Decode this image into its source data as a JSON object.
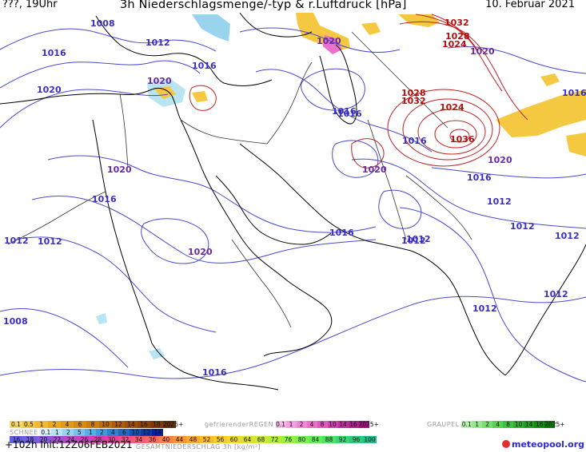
{
  "header": {
    "left": "???, 19Uhr",
    "title": "3h Niederschlagsmenge/-typ & r.Luftdruck [hPa]",
    "date": "10. Februar 2021"
  },
  "footer": {
    "run_info": "+102h  Init:12Z06FEB2021",
    "logo": "meteopool.org"
  },
  "colors": {
    "isobar_low": "#4a4ad0",
    "isobar_high": "#c02020",
    "label_low": "#3a2fc0",
    "label_high": "#b01010",
    "coast": "#000000",
    "border": "#333333"
  },
  "isobar_labels": [
    {
      "text": "1008",
      "tone": "low"
    },
    {
      "text": "1012",
      "tone": "low"
    },
    {
      "text": "1016",
      "tone": "low"
    },
    {
      "text": "1016",
      "tone": "low"
    },
    {
      "text": "1020",
      "tone": "low"
    },
    {
      "text": "1020",
      "tone": "low"
    },
    {
      "text": "1012",
      "tone": "low"
    },
    {
      "text": "1016",
      "tone": "low"
    },
    {
      "text": "1020",
      "tone": "low"
    },
    {
      "text": "1016",
      "tone": "low"
    },
    {
      "text": "1020",
      "tone": "low"
    },
    {
      "text": "1012",
      "tone": "low"
    },
    {
      "text": "1008",
      "tone": "low"
    },
    {
      "text": "1016",
      "tone": "low"
    },
    {
      "text": "1020",
      "tone": "low"
    },
    {
      "text": "1016",
      "tone": "low"
    },
    {
      "text": "1020",
      "tone": "low"
    },
    {
      "text": "1016",
      "tone": "low"
    },
    {
      "text": "1016",
      "tone": "low"
    },
    {
      "text": "1032",
      "tone": "high"
    },
    {
      "text": "1028",
      "tone": "high"
    },
    {
      "text": "1024",
      "tone": "high"
    },
    {
      "text": "1020",
      "tone": "low"
    },
    {
      "text": "1028",
      "tone": "high"
    },
    {
      "text": "1032",
      "tone": "high"
    },
    {
      "text": "1024",
      "tone": "high"
    },
    {
      "text": "1036",
      "tone": "high"
    },
    {
      "text": "1020",
      "tone": "low"
    },
    {
      "text": "1016",
      "tone": "low"
    },
    {
      "text": "1012",
      "tone": "low"
    },
    {
      "text": "1012",
      "tone": "low"
    },
    {
      "text": "1012",
      "tone": "low"
    },
    {
      "text": "1012",
      "tone": "low"
    },
    {
      "text": "1012",
      "tone": "low"
    },
    {
      "text": "1012",
      "tone": "low"
    },
    {
      "text": "1012",
      "tone": "low"
    },
    {
      "text": "1016",
      "tone": "low"
    }
  ],
  "legend": {
    "rain": {
      "name": "REGEN",
      "values": [
        "0.1",
        "0.5",
        "1",
        "2",
        "4",
        "6",
        "8",
        "10",
        "12",
        "14",
        "16",
        "18",
        "2025+"
      ],
      "colors": [
        "#f8d866",
        "#f5c842",
        "#f2b830",
        "#eaa820",
        "#e09a18",
        "#d88c14",
        "#cc7c10",
        "#c06c0c",
        "#b05c0a",
        "#a04e08",
        "#904206",
        "#803806",
        "#6a2e06"
      ]
    },
    "freezing_rain": {
      "name": "gefrierenderREGEN",
      "values": [
        "0.1",
        "1",
        "2",
        "4",
        "8",
        "10",
        "14",
        "16",
        "2025+"
      ],
      "colors": [
        "#f8b8e8",
        "#f4a0e0",
        "#f088d6",
        "#ea70cc",
        "#e058c0",
        "#d040b0",
        "#c030a0",
        "#b02090",
        "#a01080"
      ]
    },
    "graupel": {
      "name": "GRAUPEL",
      "values": [
        "0.1",
        "1",
        "2",
        "4",
        "8",
        "10",
        "14",
        "16",
        "2025+"
      ],
      "colors": [
        "#b8f0b0",
        "#98e890",
        "#78de70",
        "#58d050",
        "#40c040",
        "#30b030",
        "#20a020",
        "#109010",
        "#008000"
      ]
    },
    "snow": {
      "name": "SCHNEE",
      "values": [
        "0.1",
        "1",
        "2",
        "5",
        "1",
        "2",
        "4",
        "6",
        "10",
        "12",
        "14"
      ],
      "colors": [
        "#d8f0f8",
        "#b8e4f4",
        "#98d4ee",
        "#78c4e8",
        "#58b0e0",
        "#4098d8",
        "#3080d0",
        "#2068c8",
        "#1850b8",
        "#1038a8",
        "#0820a0"
      ]
    },
    "total": {
      "name": "GESAMTNIEDERSCHLAG 3h [kg/m²]",
      "values": [
        "16",
        "18",
        "20",
        "22",
        "24",
        "26",
        "28",
        "30",
        "32",
        "34",
        "36",
        "40",
        "44",
        "48",
        "52",
        "56",
        "60",
        "64",
        "68",
        "72",
        "76",
        "80",
        "84",
        "88",
        "92",
        "96",
        "100"
      ],
      "colors": [
        "#6060e0",
        "#7060e0",
        "#8858d8",
        "#a050d0",
        "#b848c8",
        "#cc40c0",
        "#dc38b0",
        "#e8409c",
        "#f04c88",
        "#f45c74",
        "#f66c60",
        "#f7804c",
        "#f89438",
        "#f9a830",
        "#f9bc2c",
        "#f8cc28",
        "#f0d828",
        "#e0e02c",
        "#ccea30",
        "#b4ee38",
        "#98f040",
        "#7cf04c",
        "#60ec58",
        "#48e464",
        "#36d870",
        "#28cc7c",
        "#20c088"
      ]
    }
  }
}
